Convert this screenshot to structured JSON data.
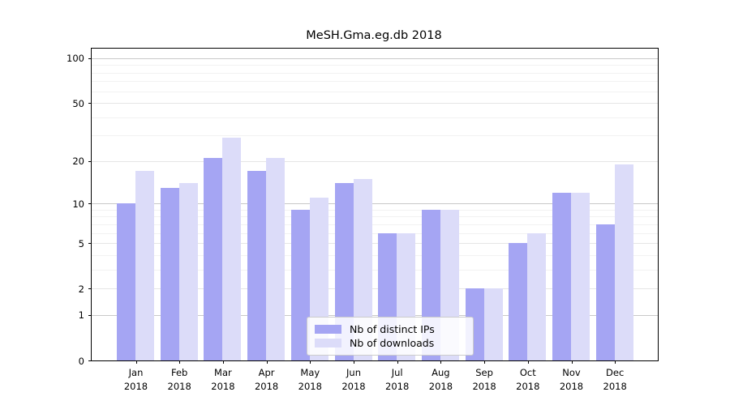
{
  "title": "MeSH.Gma.eg.db 2018",
  "chart_data": {
    "type": "bar",
    "title": "MeSH.Gma.eg.db 2018",
    "categories": [
      "Jan 2018",
      "Feb 2018",
      "Mar 2018",
      "Apr 2018",
      "May 2018",
      "Jun 2018",
      "Jul 2018",
      "Aug 2018",
      "Sep 2018",
      "Oct 2018",
      "Nov 2018",
      "Dec 2018"
    ],
    "month_labels": [
      "Jan",
      "Feb",
      "Mar",
      "Apr",
      "May",
      "Jun",
      "Jul",
      "Aug",
      "Sep",
      "Oct",
      "Nov",
      "Dec"
    ],
    "year_label": "2018",
    "series": [
      {
        "name": "Nb of distinct IPs",
        "color": "#a5a5f3",
        "values": [
          10,
          13,
          21,
          17,
          9,
          14,
          6,
          9,
          2,
          5,
          12,
          7
        ]
      },
      {
        "name": "Nb of downloads",
        "color": "#dcdcf9",
        "values": [
          17,
          14,
          29,
          21,
          11,
          15,
          6,
          9,
          2,
          6,
          12,
          19
        ]
      }
    ],
    "yscale": "log1p",
    "ylim": [
      0,
      100
    ],
    "yticks": [
      0,
      1,
      2,
      5,
      10,
      20,
      50,
      100
    ],
    "ytick_labels": [
      "0",
      "1",
      "2",
      "5",
      "10",
      "20",
      "50",
      "100"
    ],
    "minor_yticks": [
      3,
      4,
      6,
      7,
      8,
      9,
      30,
      40,
      60,
      70,
      80,
      90
    ],
    "grid": "horizontal",
    "legend_position": "lower-center",
    "xlabel": "",
    "ylabel": ""
  },
  "colors": {
    "background": "#ffffff",
    "axis": "#000000",
    "grid_decade": "#c9c9c9",
    "grid_major": "#e5e5e5",
    "grid_minor": "#f2f2f2",
    "bar_distinct_ips": "#a5a5f3",
    "bar_downloads": "#dcdcf9",
    "legend_border": "#cccccc"
  }
}
